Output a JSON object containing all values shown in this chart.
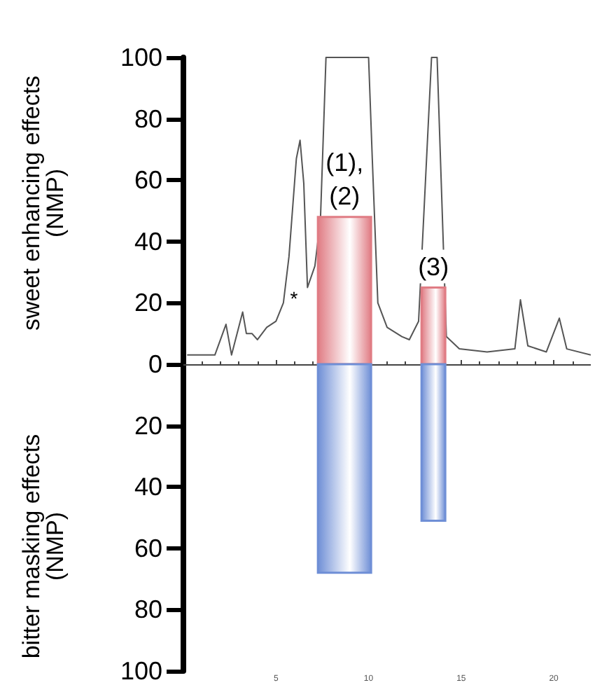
{
  "chart_data": {
    "type": "bar",
    "ylabel": "sweet enhancing effects\n(NMP)",
    "xlim": [
      0,
      22
    ],
    "xticks": [
      5,
      10,
      15,
      20
    ],
    "ylim": [
      -100,
      100
    ],
    "yticks": [
      {
        "value": -100,
        "label": "100"
      },
      {
        "value": -80,
        "label": "80"
      },
      {
        "value": -60,
        "label": "60"
      },
      {
        "value": -40,
        "label": "40"
      },
      {
        "value": -20,
        "label": "20"
      },
      0,
      20,
      40,
      60,
      80,
      100
    ],
    "stacked": true,
    "marker": "none",
    "line_style": "solid",
    "series": [
      {
        "type": "line",
        "color": "#555555",
        "x": [
          0.2,
          0.7,
          1.7,
          2.3,
          2.6,
          3.2,
          3.4,
          3.7,
          4.0,
          4.5,
          5.0,
          5.4,
          5.7,
          6.1,
          6.3,
          6.5,
          6.7,
          7.1,
          7.4,
          7.7,
          10.0,
          10.2,
          10.5,
          11.0,
          11.8,
          12.2,
          12.7,
          13.4,
          13.7,
          14.2,
          14.9,
          16.4,
          17.9,
          18.2,
          18.6,
          19.6,
          20.3,
          20.7,
          22
        ],
        "values": [
          3,
          3,
          3,
          13,
          3,
          17,
          10,
          10,
          8,
          12,
          14,
          20,
          35,
          67,
          73,
          59,
          25,
          32,
          47,
          100,
          100,
          67,
          20,
          12,
          9,
          8,
          14,
          100,
          100,
          9,
          5,
          4,
          5,
          21,
          6,
          4,
          15,
          5,
          3
        ]
      },
      {
        "color": "#e07c84",
        "x": [
          8.7,
          13.5
        ],
        "values": [
          48,
          25
        ]
      },
      {
        "color": "#6f8fd6",
        "x": [
          8.7,
          13.5
        ],
        "values": [
          -68,
          -51
        ]
      }
    ],
    "annotations": [
      {
        "text": "(1),\n(2)",
        "x": 8.7,
        "y": 48
      },
      {
        "text": "(3)",
        "x": 13.5,
        "y": 25
      },
      "*",
      "bitter masking effects\n(NMP)"
    ]
  }
}
